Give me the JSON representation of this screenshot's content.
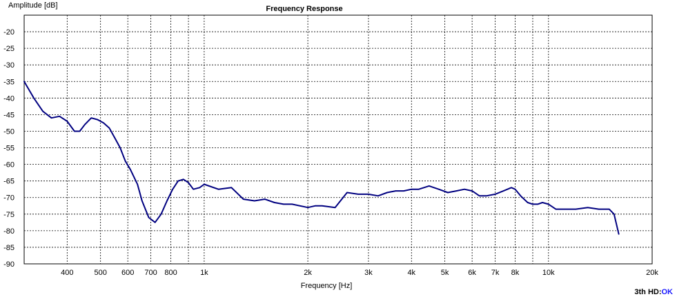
{
  "chart_data": {
    "type": "line",
    "title": "Frequency Response",
    "xlabel": "Frequency [Hz]",
    "ylabel": "Amplitude [dB]",
    "x_scale": "log",
    "xlim": [
      300,
      20000
    ],
    "ylim": [
      -90,
      -15
    ],
    "grid": true,
    "x_ticks": [
      {
        "v": 400,
        "label": "400"
      },
      {
        "v": 500,
        "label": "500"
      },
      {
        "v": 600,
        "label": "600"
      },
      {
        "v": 700,
        "label": "700"
      },
      {
        "v": 800,
        "label": "800"
      },
      {
        "v": 900,
        "label": ""
      },
      {
        "v": 1000,
        "label": "1k"
      },
      {
        "v": 2000,
        "label": "2k"
      },
      {
        "v": 3000,
        "label": "3k"
      },
      {
        "v": 4000,
        "label": "4k"
      },
      {
        "v": 5000,
        "label": "5k"
      },
      {
        "v": 6000,
        "label": "6k"
      },
      {
        "v": 7000,
        "label": "7k"
      },
      {
        "v": 8000,
        "label": "8k"
      },
      {
        "v": 9000,
        "label": ""
      },
      {
        "v": 10000,
        "label": "10k"
      },
      {
        "v": 20000,
        "label": "20k"
      }
    ],
    "y_ticks": [
      -20,
      -25,
      -30,
      -35,
      -40,
      -45,
      -50,
      -55,
      -60,
      -65,
      -70,
      -75,
      -80,
      -85,
      -90
    ],
    "line_color": "#000080",
    "series": [
      {
        "x": [
          300,
          320,
          340,
          360,
          380,
          400,
          420,
          435,
          450,
          470,
          490,
          510,
          530,
          550,
          570,
          590,
          610,
          640,
          660,
          690,
          720,
          750,
          780,
          810,
          840,
          870,
          900,
          930,
          970,
          1000,
          1100,
          1200,
          1300,
          1400,
          1500,
          1600,
          1700,
          1800,
          2000,
          2100,
          2200,
          2400,
          2600,
          2800,
          3000,
          3200,
          3400,
          3600,
          3800,
          4000,
          4200,
          4500,
          4800,
          5100,
          5400,
          5700,
          6000,
          6300,
          6600,
          7000,
          7400,
          7800,
          8000,
          8300,
          8700,
          9000,
          9300,
          9600,
          10000,
          10500,
          11000,
          12000,
          13000,
          14000,
          15000,
          15500,
          16000
        ],
        "y": [
          -35,
          -40,
          -44,
          -46,
          -45.5,
          -47,
          -50,
          -50,
          -48,
          -46,
          -46.5,
          -47.5,
          -49,
          -52,
          -55,
          -59,
          -61.5,
          -66,
          -71,
          -76,
          -77.5,
          -75,
          -71,
          -67.5,
          -65,
          -64.5,
          -65.5,
          -67.5,
          -67,
          -66,
          -67.5,
          -67,
          -70.5,
          -71,
          -70.5,
          -71.5,
          -72,
          -72,
          -73,
          -72.5,
          -72.5,
          -73,
          -68.5,
          -69,
          -69,
          -69.5,
          -68.5,
          -68,
          -68,
          -67.5,
          -67.5,
          -66.5,
          -67.5,
          -68.5,
          -68,
          -67.5,
          -68,
          -69.5,
          -69.5,
          -69,
          -68,
          -67,
          -67.5,
          -69.5,
          -71.5,
          -72,
          -72,
          -71.5,
          -72,
          -73.5,
          -73.5,
          -73.5,
          -73,
          -73.5,
          -73.5,
          -75,
          -81
        ]
      }
    ]
  },
  "status": {
    "prefix": "3th HD:",
    "value": "OK"
  }
}
